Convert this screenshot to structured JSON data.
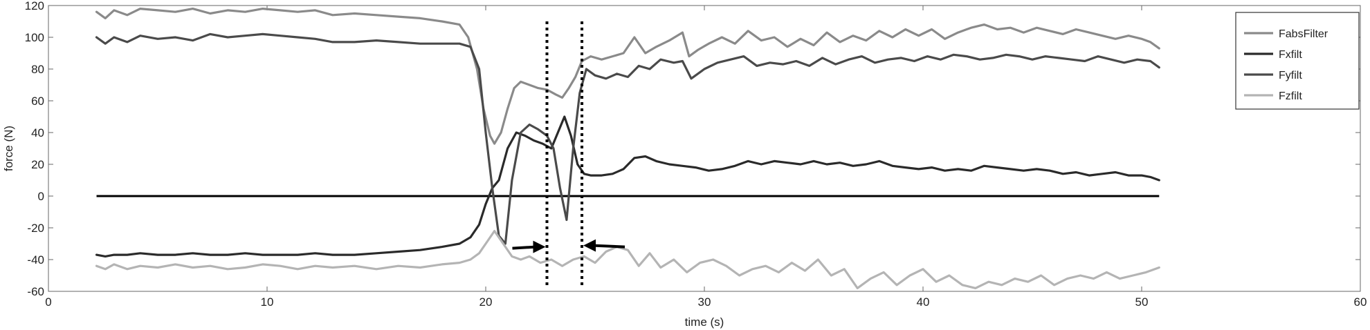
{
  "chart_data": {
    "type": "line",
    "title": "",
    "xlabel": "time (s)",
    "ylabel": "force (N)",
    "xlim": [
      0,
      60
    ],
    "ylim": [
      -60,
      120
    ],
    "xticks": [
      "0",
      "10",
      "20",
      "30",
      "40",
      "50",
      "60"
    ],
    "yticks": [
      "-60",
      "-40",
      "-20",
      "0",
      "20",
      "40",
      "60",
      "80",
      "100",
      "120"
    ],
    "grid": false,
    "legend_position": "top-right",
    "series": [
      {
        "name": "FabsFilter",
        "color": "#8a8a8a",
        "x": [
          2.2,
          2.6,
          3.0,
          3.6,
          4.2,
          5.0,
          5.8,
          6.6,
          7.4,
          8.2,
          9.0,
          9.8,
          10.6,
          11.4,
          12.2,
          13.0,
          14.0,
          15.0,
          16.0,
          17.0,
          18.0,
          18.8,
          19.2,
          19.6,
          19.9,
          20.2,
          20.4,
          20.7,
          21.0,
          21.3,
          21.6,
          22.0,
          22.4,
          22.8,
          23.2,
          23.5,
          23.8,
          24.1,
          24.4,
          24.8,
          25.3,
          25.8,
          26.3,
          26.8,
          27.3,
          27.8,
          28.4,
          29.0,
          29.3,
          29.7,
          30.2,
          30.8,
          31.4,
          32.0,
          32.6,
          33.2,
          33.8,
          34.4,
          35.0,
          35.6,
          36.2,
          36.8,
          37.4,
          38.0,
          38.6,
          39.2,
          39.8,
          40.4,
          41.0,
          41.6,
          42.2,
          42.8,
          43.4,
          44.0,
          44.6,
          45.2,
          45.8,
          46.4,
          47.0,
          47.6,
          48.2,
          48.8,
          49.4,
          50.0,
          50.4,
          50.8
        ],
        "y": [
          116,
          112,
          117,
          114,
          118,
          117,
          116,
          118,
          115,
          117,
          116,
          118,
          117,
          116,
          117,
          114,
          115,
          114,
          113,
          112,
          110,
          108,
          100,
          80,
          55,
          38,
          33,
          40,
          55,
          68,
          72,
          70,
          68,
          67,
          64,
          62,
          68,
          75,
          85,
          88,
          86,
          88,
          90,
          100,
          90,
          94,
          98,
          103,
          88,
          92,
          96,
          100,
          96,
          104,
          98,
          100,
          94,
          99,
          95,
          103,
          97,
          101,
          98,
          104,
          100,
          105,
          101,
          105,
          99,
          103,
          106,
          108,
          105,
          106,
          103,
          106,
          104,
          102,
          105,
          103,
          101,
          99,
          101,
          99,
          97,
          93
        ]
      },
      {
        "name": "Fxfilt",
        "color": "#2a2a2a",
        "x": [
          2.2,
          2.6,
          3.0,
          3.6,
          4.2,
          5.0,
          5.8,
          6.6,
          7.4,
          8.2,
          9.0,
          9.8,
          10.6,
          11.4,
          12.2,
          13.0,
          14.0,
          15.0,
          16.0,
          17.0,
          18.0,
          18.8,
          19.3,
          19.7,
          20.0,
          20.3,
          20.6,
          21.0,
          21.4,
          21.8,
          22.2,
          22.6,
          23.0,
          23.3,
          23.6,
          23.9,
          24.2,
          24.5,
          24.8,
          25.3,
          25.8,
          26.3,
          26.8,
          27.3,
          27.8,
          28.4,
          29.0,
          29.6,
          30.2,
          30.8,
          31.4,
          32.0,
          32.6,
          33.2,
          33.8,
          34.4,
          35.0,
          35.6,
          36.2,
          36.8,
          37.4,
          38.0,
          38.6,
          39.2,
          39.8,
          40.4,
          41.0,
          41.6,
          42.2,
          42.8,
          43.4,
          44.0,
          44.6,
          45.2,
          45.8,
          46.4,
          47.0,
          47.6,
          48.2,
          48.8,
          49.4,
          50.0,
          50.4,
          50.8
        ],
        "y": [
          -37,
          -38,
          -37,
          -37,
          -36,
          -37,
          -37,
          -36,
          -37,
          -37,
          -36,
          -37,
          -37,
          -37,
          -36,
          -37,
          -37,
          -36,
          -35,
          -34,
          -32,
          -30,
          -26,
          -18,
          -5,
          5,
          10,
          30,
          40,
          38,
          35,
          33,
          30,
          40,
          50,
          38,
          20,
          14,
          13,
          13,
          14,
          17,
          24,
          25,
          22,
          20,
          19,
          18,
          16,
          17,
          19,
          22,
          20,
          22,
          21,
          20,
          22,
          20,
          21,
          19,
          20,
          22,
          19,
          18,
          17,
          18,
          16,
          17,
          16,
          19,
          18,
          17,
          16,
          17,
          16,
          14,
          15,
          13,
          14,
          15,
          13,
          13,
          12,
          10
        ]
      },
      {
        "name": "Fyfilt",
        "color": "#4a4a4a",
        "x": [
          2.2,
          2.6,
          3.0,
          3.6,
          4.2,
          5.0,
          5.8,
          6.6,
          7.4,
          8.2,
          9.0,
          9.8,
          10.6,
          11.4,
          12.2,
          13.0,
          14.0,
          15.0,
          16.0,
          17.0,
          18.0,
          18.8,
          19.3,
          19.7,
          20.0,
          20.3,
          20.6,
          20.9,
          21.2,
          21.6,
          22.0,
          22.4,
          22.8,
          23.1,
          23.4,
          23.7,
          24.0,
          24.3,
          24.6,
          25.0,
          25.5,
          26.0,
          26.5,
          27.0,
          27.5,
          28.0,
          28.6,
          29.0,
          29.4,
          30.0,
          30.6,
          31.2,
          31.8,
          32.4,
          33.0,
          33.6,
          34.2,
          34.8,
          35.4,
          36.0,
          36.6,
          37.2,
          37.8,
          38.4,
          39.0,
          39.6,
          40.2,
          40.8,
          41.4,
          42.0,
          42.6,
          43.2,
          43.8,
          44.4,
          45.0,
          45.6,
          46.2,
          46.8,
          47.4,
          48.0,
          48.6,
          49.2,
          49.8,
          50.4,
          50.8
        ],
        "y": [
          100,
          96,
          100,
          97,
          101,
          99,
          100,
          98,
          102,
          100,
          101,
          102,
          101,
          100,
          99,
          97,
          97,
          98,
          97,
          96,
          96,
          96,
          94,
          80,
          40,
          5,
          -25,
          -30,
          10,
          40,
          45,
          42,
          38,
          30,
          5,
          -15,
          30,
          65,
          80,
          76,
          74,
          77,
          75,
          82,
          80,
          86,
          84,
          85,
          74,
          80,
          84,
          86,
          88,
          82,
          84,
          83,
          85,
          82,
          87,
          83,
          86,
          88,
          84,
          86,
          87,
          85,
          88,
          86,
          89,
          88,
          86,
          87,
          89,
          88,
          86,
          88,
          87,
          86,
          85,
          88,
          86,
          84,
          86,
          85,
          81
        ]
      },
      {
        "name": "Fzfilt",
        "color": "#b4b4b4",
        "x": [
          2.2,
          2.6,
          3.0,
          3.6,
          4.2,
          5.0,
          5.8,
          6.6,
          7.4,
          8.2,
          9.0,
          9.8,
          10.6,
          11.4,
          12.2,
          13.0,
          14.0,
          15.0,
          16.0,
          17.0,
          18.0,
          18.8,
          19.3,
          19.7,
          20.1,
          20.4,
          20.8,
          21.2,
          21.6,
          22.0,
          22.5,
          23.0,
          23.5,
          24.0,
          24.5,
          25.0,
          25.5,
          26.0,
          26.5,
          27.0,
          27.5,
          28.0,
          28.6,
          29.2,
          29.8,
          30.4,
          31.0,
          31.6,
          32.2,
          32.8,
          33.4,
          34.0,
          34.6,
          35.2,
          35.8,
          36.4,
          37.0,
          37.6,
          38.2,
          38.8,
          39.4,
          40.0,
          40.6,
          41.2,
          41.8,
          42.4,
          43.0,
          43.6,
          44.2,
          44.8,
          45.4,
          46.0,
          46.6,
          47.2,
          47.8,
          48.4,
          49.0,
          49.6,
          50.2,
          50.8
        ],
        "y": [
          -44,
          -46,
          -43,
          -46,
          -44,
          -45,
          -43,
          -45,
          -44,
          -46,
          -45,
          -43,
          -44,
          -46,
          -44,
          -45,
          -44,
          -46,
          -44,
          -45,
          -43,
          -42,
          -40,
          -36,
          -28,
          -22,
          -30,
          -38,
          -40,
          -38,
          -42,
          -40,
          -44,
          -40,
          -38,
          -42,
          -35,
          -32,
          -34,
          -44,
          -36,
          -45,
          -40,
          -48,
          -42,
          -40,
          -44,
          -50,
          -46,
          -44,
          -48,
          -42,
          -47,
          -40,
          -50,
          -46,
          -58,
          -52,
          -48,
          -56,
          -50,
          -46,
          -54,
          -50,
          -56,
          -58,
          -54,
          -56,
          -52,
          -54,
          -50,
          -56,
          -52,
          -50,
          -52,
          -48,
          -52,
          -50,
          -48,
          -45
        ]
      }
    ],
    "reference_line": {
      "y": 0,
      "x_start": 2.2,
      "x_end": 50.8,
      "color": "#000000"
    },
    "markers": {
      "vertical_dotted_x": [
        22.8,
        24.4
      ],
      "arrows": [
        "right-pointing",
        "left-pointing"
      ]
    }
  }
}
